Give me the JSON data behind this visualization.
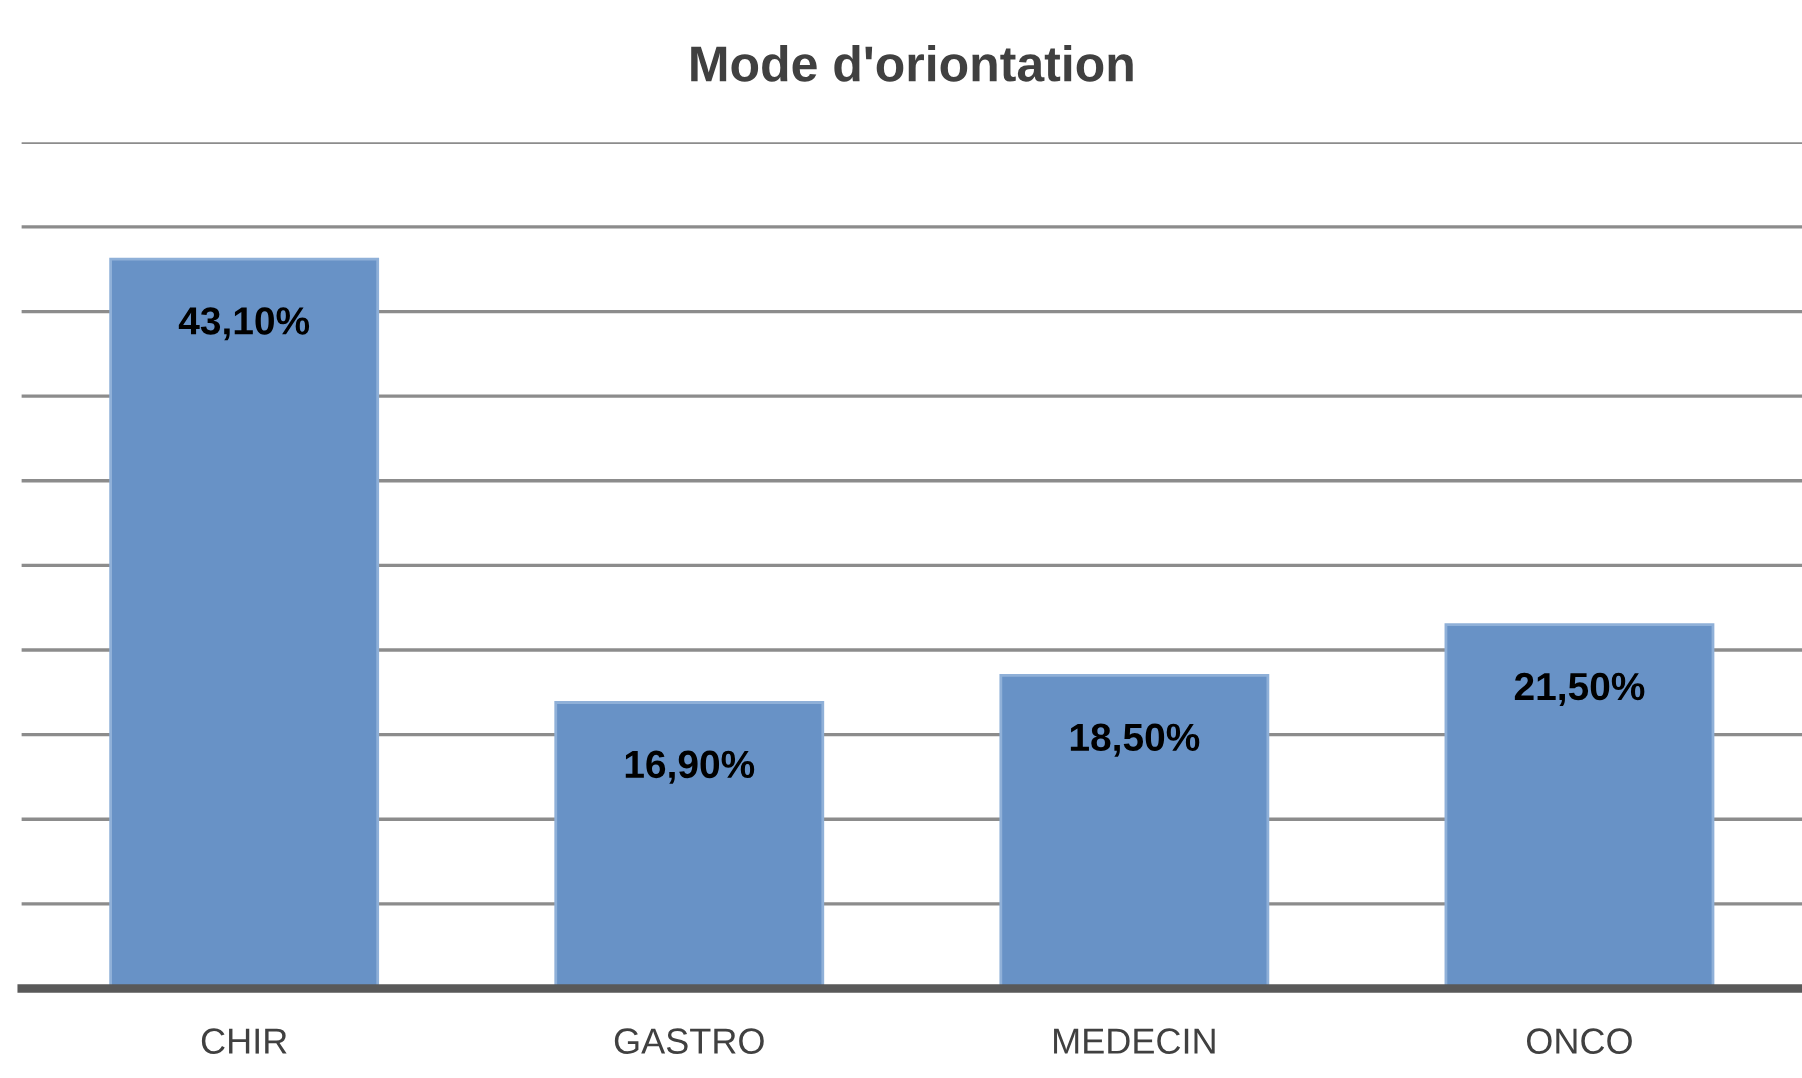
{
  "chart_data": {
    "type": "bar",
    "title": "Mode d'oriontation",
    "categories": [
      "CHIR",
      "GASTRO",
      "MEDECIN",
      "ONCO"
    ],
    "values": [
      43.1,
      16.9,
      18.5,
      21.5
    ],
    "value_labels": [
      "43,10%",
      "16,90%",
      "18,50%",
      "21,50%"
    ],
    "color": "#6892c6",
    "ylim": [
      0,
      50
    ],
    "yticks": [
      {
        "value": 0,
        "label": null
      },
      {
        "value": 5,
        "label": null
      },
      {
        "value": 10,
        "label": null
      },
      {
        "value": 15,
        "label": null
      },
      {
        "value": 20,
        "label": null
      },
      {
        "value": 25,
        "label": null
      },
      {
        "value": 30,
        "label": null
      },
      {
        "value": 35,
        "label": null
      },
      {
        "value": 40,
        "label": null
      },
      {
        "value": 45,
        "label": null
      },
      {
        "value": 50,
        "label": null
      }
    ],
    "grid": "y",
    "tick_labels": "x",
    "legend": false
  }
}
